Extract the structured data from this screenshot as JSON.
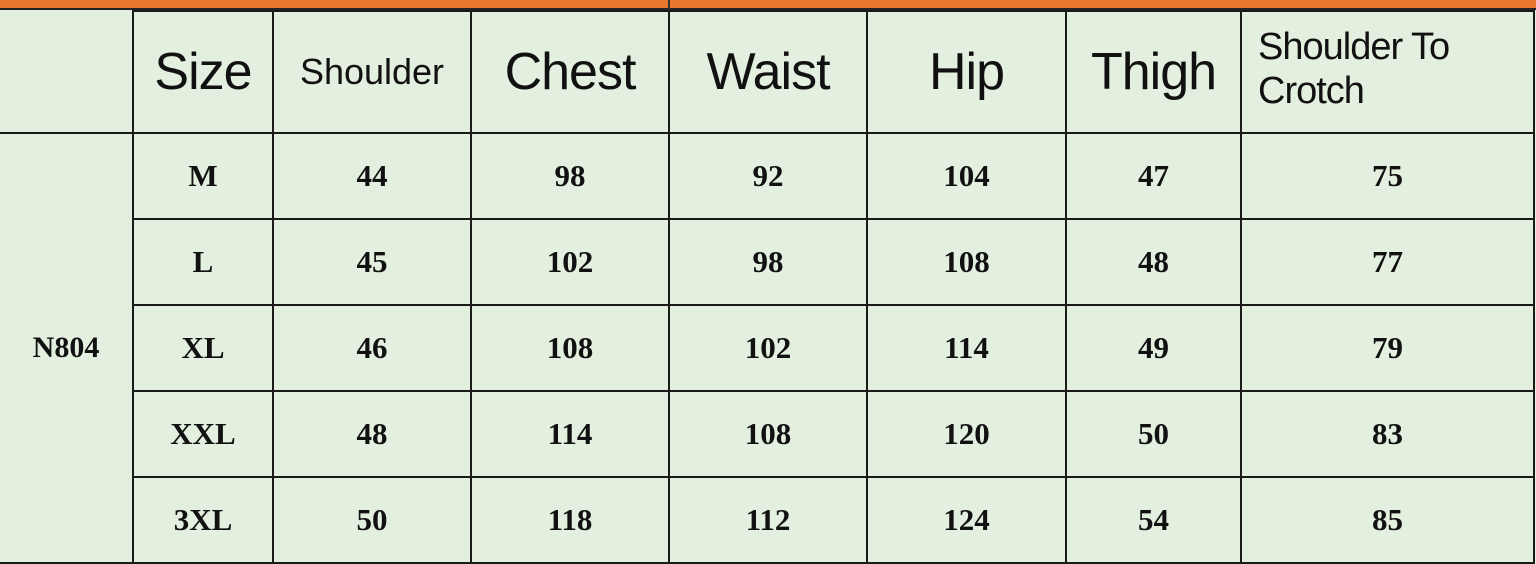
{
  "header_bar_color": "#e8772e",
  "background_color": "#e4f0df",
  "columns": [
    "Size",
    "Shoulder",
    "Chest",
    "Waist",
    "Hip",
    "Thigh",
    "Shoulder To Crotch"
  ],
  "model": "N804",
  "rows": [
    {
      "size": "M",
      "values": [
        "44",
        "98",
        "92",
        "104",
        "47",
        "75"
      ]
    },
    {
      "size": "L",
      "values": [
        "45",
        "102",
        "98",
        "108",
        "48",
        "77"
      ]
    },
    {
      "size": "XL",
      "values": [
        "46",
        "108",
        "102",
        "114",
        "49",
        "79"
      ]
    },
    {
      "size": "XXL",
      "values": [
        "48",
        "114",
        "108",
        "120",
        "50",
        "83"
      ]
    },
    {
      "size": "3XL",
      "values": [
        "50",
        "118",
        "112",
        "124",
        "54",
        "85"
      ]
    }
  ]
}
